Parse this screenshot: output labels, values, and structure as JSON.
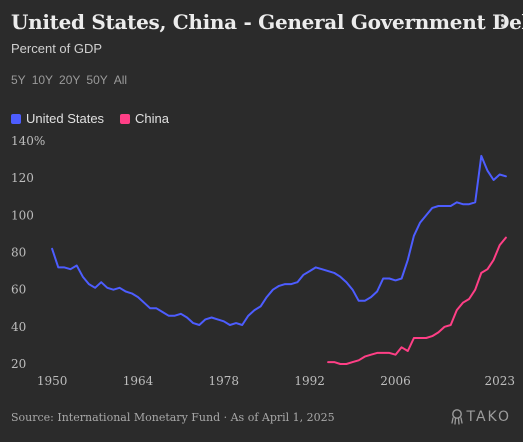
{
  "header": {
    "title": "United States, China - General Government Debt",
    "subtitle": "Percent of GDP"
  },
  "time_ranges": [
    "5Y",
    "10Y",
    "20Y",
    "50Y",
    "All"
  ],
  "footer": {
    "source": "Source: International Monetary Fund · As of April 1, 2025",
    "logo_text": "TAKO"
  },
  "icons": {
    "menu": "vertical-ellipsis-icon",
    "logo": "tako-logo-icon"
  },
  "colors": {
    "background": "#2b2b2b",
    "united_states": "#4d5dff",
    "china": "#ff3f86"
  },
  "chart_data": {
    "type": "line",
    "title": "United States, China - General Government Debt",
    "subtitle": "Percent of GDP",
    "xlabel": "",
    "ylabel": "",
    "xlim": [
      1949,
      2025
    ],
    "ylim": [
      20,
      140
    ],
    "x_ticks": [
      1950,
      1964,
      1978,
      1992,
      2006,
      2023
    ],
    "x_tick_labels": [
      "1950",
      "1964",
      "1978",
      "1992",
      "2006",
      "2023"
    ],
    "y_ticks": [
      20,
      40,
      60,
      80,
      100,
      120,
      140
    ],
    "y_tick_labels": [
      "20",
      "40",
      "60",
      "80",
      "100",
      "120",
      "140%"
    ],
    "grid": false,
    "legend_position": "top-left",
    "series": [
      {
        "name": "United States",
        "color": "#4d5dff",
        "x": [
          1950,
          1951,
          1952,
          1953,
          1954,
          1955,
          1956,
          1957,
          1958,
          1959,
          1960,
          1961,
          1962,
          1963,
          1964,
          1965,
          1966,
          1967,
          1968,
          1969,
          1970,
          1971,
          1972,
          1973,
          1974,
          1975,
          1976,
          1977,
          1978,
          1979,
          1980,
          1981,
          1982,
          1983,
          1984,
          1985,
          1986,
          1987,
          1988,
          1989,
          1990,
          1991,
          1992,
          1993,
          1994,
          1995,
          1996,
          1997,
          1998,
          1999,
          2000,
          2001,
          2002,
          2003,
          2004,
          2005,
          2006,
          2007,
          2008,
          2009,
          2010,
          2011,
          2012,
          2013,
          2014,
          2015,
          2016,
          2017,
          2018,
          2019,
          2020,
          2021,
          2022,
          2023,
          2024
        ],
        "values": [
          82,
          72,
          72,
          71,
          73,
          67,
          63,
          61,
          64,
          61,
          60,
          61,
          59,
          58,
          56,
          53,
          50,
          50,
          48,
          46,
          46,
          47,
          45,
          42,
          41,
          44,
          45,
          44,
          43,
          41,
          42,
          41,
          46,
          49,
          51,
          56,
          60,
          62,
          63,
          63,
          64,
          68,
          70,
          72,
          71,
          70,
          69,
          67,
          64,
          60,
          54,
          54,
          56,
          59,
          66,
          66,
          65,
          66,
          76,
          89,
          96,
          100,
          104,
          105,
          105,
          105,
          107,
          106,
          106,
          107,
          132,
          124,
          119,
          122,
          121
        ]
      },
      {
        "name": "China",
        "color": "#ff3f86",
        "x": [
          1995,
          1996,
          1997,
          1998,
          1999,
          2000,
          2001,
          2002,
          2003,
          2004,
          2005,
          2006,
          2007,
          2008,
          2009,
          2010,
          2011,
          2012,
          2013,
          2014,
          2015,
          2016,
          2017,
          2018,
          2019,
          2020,
          2021,
          2022,
          2023,
          2024
        ],
        "values": [
          21,
          21,
          20,
          20,
          21,
          22,
          24,
          25,
          26,
          26,
          26,
          25,
          29,
          27,
          34,
          34,
          34,
          35,
          37,
          40,
          41,
          49,
          53,
          55,
          60,
          69,
          71,
          76,
          84,
          88
        ]
      }
    ]
  }
}
